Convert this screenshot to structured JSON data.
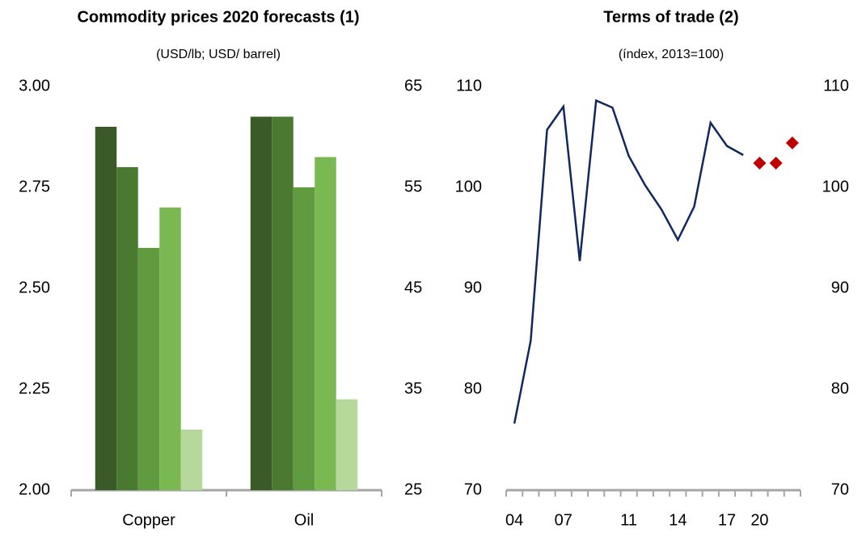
{
  "chart_data": [
    {
      "type": "bar",
      "title": "Commodity prices 2020 forecasts (1)",
      "subtitle": "(USD/lb; USD/ barrel)",
      "categories": [
        "Copper",
        "Oil"
      ],
      "value_axes": [
        "y",
        "y2"
      ],
      "series": [
        {
          "color": "#3a5a27",
          "values": [
            2.9,
            62
          ]
        },
        {
          "color": "#4a7a30",
          "values": [
            2.8,
            62
          ]
        },
        {
          "color": "#609c3f",
          "values": [
            2.6,
            55
          ]
        },
        {
          "color": "#7ab851",
          "values": [
            2.7,
            58
          ]
        },
        {
          "color": "#b6d99b",
          "values": [
            2.15,
            34
          ]
        }
      ],
      "ylim": [
        2.0,
        3.0
      ],
      "yticks": [
        {
          "value": 2.0,
          "label": "2.00"
        },
        {
          "value": 2.25,
          "label": "2.25"
        },
        {
          "value": 2.5,
          "label": "2.50"
        },
        {
          "value": 2.75,
          "label": "2.75"
        },
        {
          "value": 3.0,
          "label": "3.00"
        }
      ],
      "y2lim": [
        25,
        65
      ],
      "y2ticks": [
        25,
        35,
        45,
        55,
        65
      ]
    },
    {
      "type": "line",
      "title": "Terms of trade (2)",
      "subtitle": "(índex, 2013=100)",
      "categories": [
        "04",
        null,
        null,
        "07",
        null,
        null,
        null,
        "11",
        null,
        null,
        "14",
        null,
        null,
        "17",
        null,
        "20",
        null,
        null
      ],
      "series": [
        {
          "color": "#10285c",
          "marker": "none",
          "values": [
            76.6,
            84.8,
            105.7,
            108.0,
            92.7,
            108.6,
            107.9,
            103.1,
            100.2,
            97.8,
            94.8,
            98.1,
            106.4,
            104.1,
            103.2,
            null,
            null,
            null
          ]
        },
        {
          "color": "#c00000",
          "marker": "diamond",
          "values": [
            null,
            null,
            null,
            null,
            null,
            null,
            null,
            null,
            null,
            null,
            null,
            null,
            null,
            null,
            null,
            102.4,
            102.4,
            104.4
          ]
        }
      ],
      "ylim": [
        70,
        110
      ],
      "yticks": [
        70,
        80,
        90,
        100,
        110
      ],
      "y2lim": [
        70,
        110
      ],
      "y2ticks": [
        70,
        80,
        90,
        100,
        110
      ]
    }
  ]
}
